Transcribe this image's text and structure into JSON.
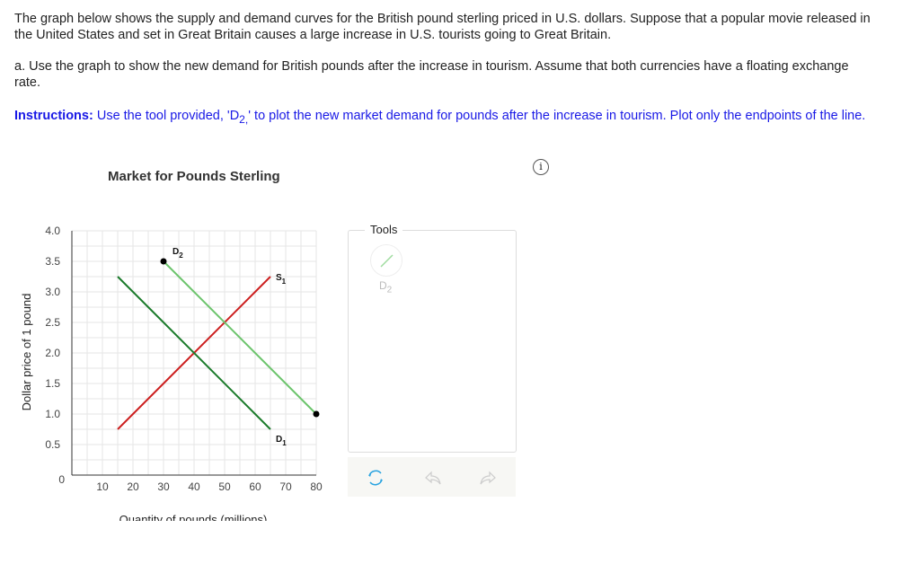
{
  "question": {
    "intro": "The graph below shows the supply and demand curves for the British pound sterling priced in U.S. dollars. Suppose that a popular movie released in the United States and set in Great Britain causes a large increase in U.S. tourists going to Great Britain.",
    "part_a": "a. Use the graph to show the new demand for British pounds after the increase in tourism. Assume that both currencies have a floating exchange rate.",
    "instructions_label": "Instructions:",
    "instructions_text": " Use the tool provided, 'D",
    "instructions_sub": "2,",
    "instructions_rest": "' to plot the new market demand for pounds after the increase in tourism. Plot only the endpoints of the line."
  },
  "info_icon": "i",
  "tools": {
    "label": "Tools",
    "tool_name": "D",
    "tool_sub": "2",
    "tool_color": "#88d088"
  },
  "toolbar": {
    "reset": "reset-icon",
    "undo": "undo-icon",
    "redo": "redo-icon"
  },
  "chart_data": {
    "type": "line",
    "title": "Market for Pounds Sterling",
    "xlabel": "Quantity of pounds (millions)",
    "ylabel": "Dollar price of 1 pound",
    "xlim": [
      0,
      80
    ],
    "ylim": [
      0,
      4.0
    ],
    "xticks": [
      "10",
      "20",
      "30",
      "40",
      "50",
      "60",
      "70",
      "80"
    ],
    "yticks": [
      "0",
      "0.5",
      "1.0",
      "1.5",
      "2.0",
      "2.5",
      "3.0",
      "3.5",
      "4.0"
    ],
    "grid": true,
    "series": [
      {
        "name": "S",
        "sub": "1",
        "color": "#cc1f1f",
        "points": [
          [
            15,
            0.75
          ],
          [
            65,
            3.25
          ]
        ],
        "markers": false
      },
      {
        "name": "D",
        "sub": "1",
        "color": "#1a7a2a",
        "points": [
          [
            15,
            3.25
          ],
          [
            65,
            0.75
          ]
        ],
        "markers": false
      },
      {
        "name": "D",
        "sub": "2",
        "color": "#6cc46c",
        "points": [
          [
            30,
            3.5
          ],
          [
            80,
            1.0
          ]
        ],
        "markers": true
      }
    ]
  }
}
